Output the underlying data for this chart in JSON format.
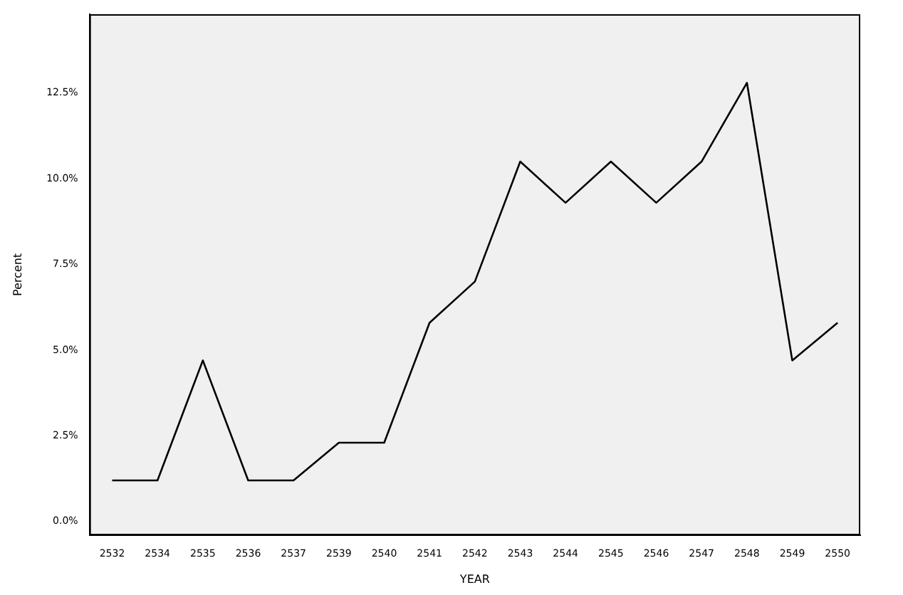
{
  "chart_data": {
    "type": "line",
    "xlabel": "YEAR",
    "ylabel": "Percent",
    "categories": [
      "2532",
      "2534",
      "2535",
      "2536",
      "2537",
      "2539",
      "2540",
      "2541",
      "2542",
      "2543",
      "2544",
      "2545",
      "2546",
      "2547",
      "2548",
      "2549",
      "2550"
    ],
    "series": [
      {
        "color": "#000000",
        "values": [
          1.2,
          1.2,
          4.7,
          1.2,
          1.2,
          2.3,
          2.3,
          5.8,
          7.0,
          10.5,
          9.3,
          10.5,
          9.3,
          10.5,
          12.8,
          4.7,
          5.8
        ]
      }
    ],
    "ylim": [
      -0.4,
      14.8
    ],
    "yticks": [
      {
        "value": 0,
        "label": "0.0%"
      },
      {
        "value": 2.5,
        "label": "2.5%"
      },
      {
        "value": 5,
        "label": "5.0%"
      },
      {
        "value": 7.5,
        "label": "7.5%"
      },
      {
        "value": 10,
        "label": "10.0%"
      },
      {
        "value": 12.5,
        "label": "12.5%"
      }
    ],
    "grid": false,
    "legend": false,
    "marker": "none",
    "line_style": "solid"
  }
}
